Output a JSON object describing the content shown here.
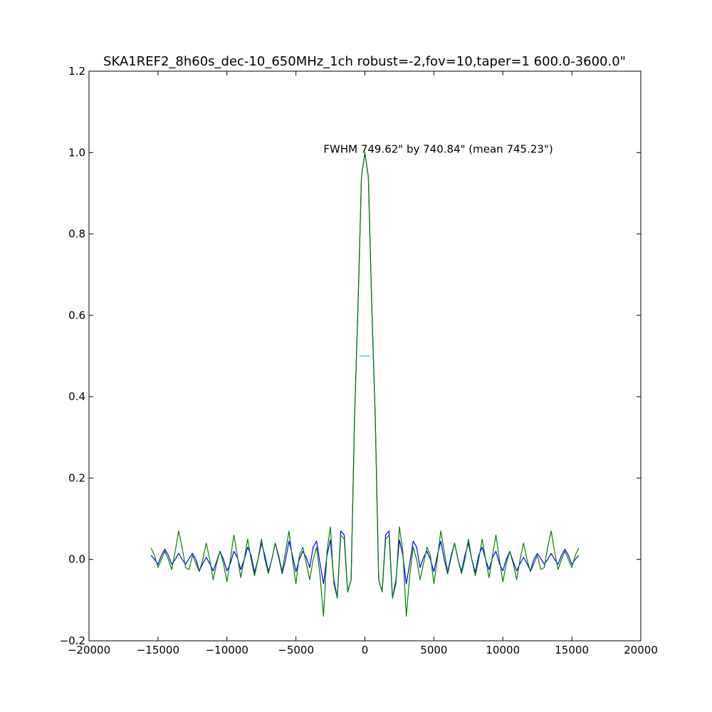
{
  "chart_data": {
    "type": "line",
    "title": "SKA1REF2_8h60s_dec-10_650MHz_1ch robust=-2,fov=10,taper=1  600.0-3600.0\"",
    "xlabel": "",
    "ylabel": "",
    "xlim": [
      -20000,
      20000
    ],
    "ylim": [
      -0.2,
      1.2
    ],
    "x_ticks": [
      -20000,
      -15000,
      -10000,
      -5000,
      0,
      5000,
      10000,
      15000,
      20000
    ],
    "y_ticks": [
      -0.2,
      0.0,
      0.2,
      0.4,
      0.6,
      0.8,
      1.0,
      1.2
    ],
    "x_tick_labels": [
      "−20000",
      "−15000",
      "−10000",
      "−5000",
      "0",
      "5000",
      "10000",
      "15000",
      "20000"
    ],
    "y_tick_labels": [
      "−0.2",
      "0.0",
      "0.2",
      "0.4",
      "0.6",
      "0.8",
      "1.0",
      "1.2"
    ],
    "grid": false,
    "legend": "none",
    "annotation": "FWHM 749.62\" by 740.84\" (mean 745.23\")",
    "annotation_anchor": {
      "x": -3000,
      "y": 1.0
    },
    "fwhm_marker": {
      "x": [
        -372.6,
        372.6
      ],
      "y": 0.5,
      "color": "#33bbbb"
    },
    "series": [
      {
        "color": "#0000ff",
        "x": [
          -15500,
          -15250,
          -15000,
          -14750,
          -14500,
          -14250,
          -14000,
          -13750,
          -13500,
          -13250,
          -13000,
          -12750,
          -12500,
          -12250,
          -12000,
          -11750,
          -11500,
          -11250,
          -11000,
          -10750,
          -10500,
          -10250,
          -10000,
          -9750,
          -9500,
          -9250,
          -9000,
          -8750,
          -8500,
          -8250,
          -8000,
          -7750,
          -7500,
          -7250,
          -7000,
          -6750,
          -6500,
          -6250,
          -6000,
          -5750,
          -5500,
          -5250,
          -5000,
          -4750,
          -4500,
          -4250,
          -4000,
          -3750,
          -3500,
          -3250,
          -3000,
          -2750,
          -2500,
          -2250,
          -2000,
          -1750,
          -1500,
          -1250,
          -1000,
          -750,
          -500,
          -250,
          0,
          250,
          500,
          750,
          1000,
          1250,
          1500,
          1750,
          2000,
          2250,
          2500,
          2750,
          3000,
          3250,
          3500,
          3750,
          4000,
          4250,
          4500,
          4750,
          5000,
          5250,
          5500,
          5750,
          6000,
          6250,
          6500,
          6750,
          7000,
          7250,
          7500,
          7750,
          8000,
          8250,
          8500,
          8750,
          9000,
          9250,
          9500,
          9750,
          10000,
          10250,
          10500,
          10750,
          11000,
          11250,
          11500,
          11750,
          12000,
          12250,
          12500,
          12750,
          13000,
          13250,
          13500,
          13750,
          14000,
          14250,
          14500,
          14750,
          15000,
          15250,
          15500
        ],
        "y": [
          0.01,
          0.0,
          -0.012,
          0.01,
          0.025,
          0.01,
          -0.012,
          0.0,
          0.015,
          0.0,
          -0.012,
          0.002,
          0.015,
          0.0,
          -0.028,
          -0.01,
          0.005,
          -0.01,
          -0.028,
          -0.005,
          0.02,
          0.0,
          -0.028,
          -0.01,
          0.02,
          0.005,
          -0.025,
          0.0,
          0.03,
          0.01,
          -0.032,
          0.0,
          0.04,
          0.01,
          -0.03,
          0.0,
          0.04,
          0.005,
          -0.035,
          0.0,
          0.045,
          0.01,
          -0.03,
          0.0,
          0.02,
          0.005,
          -0.02,
          0.03,
          0.045,
          -0.01,
          -0.06,
          0.01,
          0.048,
          -0.05,
          -0.095,
          0.07,
          0.06,
          -0.08,
          -0.05,
          0.35,
          0.62,
          0.94,
          1.0,
          0.94,
          0.62,
          0.35,
          -0.05,
          -0.08,
          0.06,
          0.07,
          -0.095,
          -0.05,
          0.048,
          0.01,
          -0.06,
          -0.01,
          0.045,
          0.03,
          -0.02,
          0.005,
          0.02,
          0.0,
          -0.03,
          0.01,
          0.045,
          0.0,
          -0.035,
          0.005,
          0.04,
          0.0,
          -0.03,
          0.01,
          0.04,
          0.0,
          -0.032,
          0.01,
          0.03,
          0.0,
          -0.025,
          0.005,
          0.02,
          -0.01,
          -0.028,
          0.0,
          0.02,
          -0.005,
          -0.028,
          -0.01,
          0.005,
          -0.01,
          -0.028,
          0.0,
          0.015,
          0.002,
          -0.012,
          0.0,
          0.015,
          0.0,
          -0.012,
          0.01,
          0.025,
          0.01,
          -0.012,
          0.0,
          0.01
        ]
      },
      {
        "color": "#008000",
        "x": [
          -15500,
          -15250,
          -15000,
          -14750,
          -14500,
          -14250,
          -14000,
          -13750,
          -13500,
          -13250,
          -13000,
          -12750,
          -12500,
          -12250,
          -12000,
          -11750,
          -11500,
          -11250,
          -11000,
          -10750,
          -10500,
          -10250,
          -10000,
          -9750,
          -9500,
          -9250,
          -9000,
          -8750,
          -8500,
          -8250,
          -8000,
          -7750,
          -7500,
          -7250,
          -7000,
          -6750,
          -6500,
          -6250,
          -6000,
          -5750,
          -5500,
          -5250,
          -5000,
          -4750,
          -4500,
          -4250,
          -4000,
          -3750,
          -3500,
          -3250,
          -3000,
          -2750,
          -2500,
          -2250,
          -2000,
          -1750,
          -1500,
          -1250,
          -1000,
          -750,
          -500,
          -250,
          0,
          250,
          500,
          750,
          1000,
          1250,
          1500,
          1750,
          2000,
          2250,
          2500,
          2750,
          3000,
          3250,
          3500,
          3750,
          4000,
          4250,
          4500,
          4750,
          5000,
          5250,
          5500,
          5750,
          6000,
          6250,
          6500,
          6750,
          7000,
          7250,
          7500,
          7750,
          8000,
          8250,
          8500,
          8750,
          9000,
          9250,
          9500,
          9750,
          10000,
          10250,
          10500,
          10750,
          11000,
          11250,
          11500,
          11750,
          12000,
          12250,
          12500,
          12750,
          13000,
          13250,
          13500,
          13750,
          14000,
          14250,
          14500,
          14750,
          15000,
          15250,
          15500
        ],
        "y": [
          0.028,
          0.01,
          -0.02,
          0.0,
          0.02,
          0.0,
          -0.025,
          0.02,
          0.07,
          0.03,
          -0.02,
          -0.025,
          0.01,
          -0.01,
          -0.03,
          0.0,
          0.04,
          0.0,
          -0.05,
          -0.01,
          0.02,
          -0.01,
          -0.055,
          0.0,
          0.06,
          0.01,
          -0.045,
          0.0,
          0.05,
          0.0,
          -0.04,
          0.0,
          0.05,
          0.0,
          -0.035,
          0.0,
          0.04,
          0.01,
          -0.03,
          0.02,
          0.07,
          0.0,
          -0.06,
          0.01,
          0.03,
          -0.01,
          -0.05,
          0.0,
          0.03,
          -0.04,
          -0.14,
          0.02,
          0.08,
          -0.06,
          -0.095,
          0.06,
          0.05,
          -0.08,
          -0.05,
          0.35,
          0.62,
          0.94,
          1.0,
          0.94,
          0.62,
          0.35,
          -0.05,
          -0.08,
          0.05,
          0.06,
          -0.095,
          -0.06,
          0.08,
          0.02,
          -0.14,
          -0.04,
          0.03,
          0.0,
          -0.05,
          -0.01,
          0.03,
          0.01,
          -0.06,
          0.0,
          0.07,
          0.02,
          -0.03,
          0.01,
          0.04,
          0.0,
          -0.035,
          0.0,
          0.05,
          0.0,
          -0.04,
          0.0,
          0.05,
          0.0,
          -0.045,
          0.01,
          0.06,
          0.0,
          -0.055,
          -0.01,
          0.02,
          -0.01,
          -0.05,
          0.0,
          0.04,
          0.0,
          -0.03,
          -0.01,
          0.01,
          -0.025,
          -0.02,
          0.03,
          0.07,
          0.02,
          -0.025,
          0.0,
          0.02,
          0.0,
          -0.02,
          0.01,
          0.028
        ]
      }
    ]
  }
}
